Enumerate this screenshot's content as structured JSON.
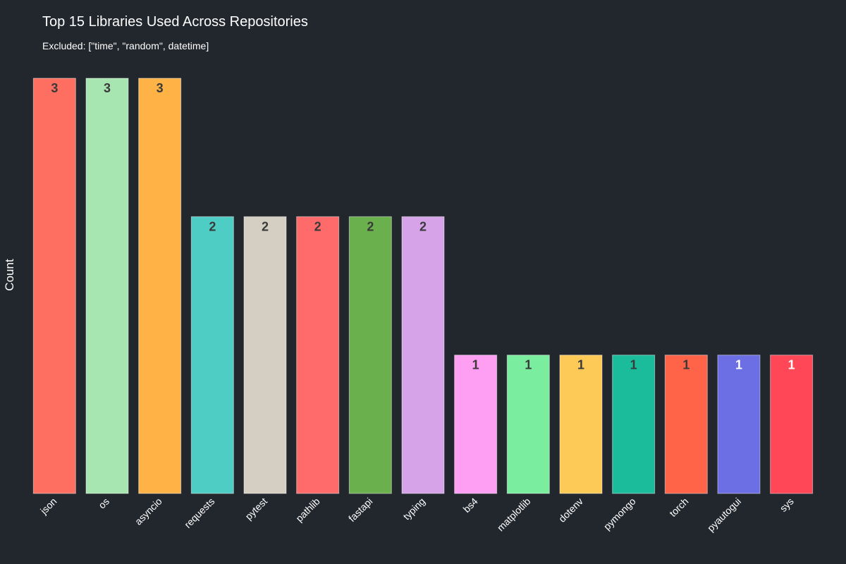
{
  "chart_data": {
    "type": "bar",
    "title": "Top 15 Libraries Used Across Repositories",
    "subtitle": "Excluded: [\"time\", \"random\", datetime]",
    "ylabel": "Count",
    "xlabel": "",
    "ylim": [
      0,
      3
    ],
    "grid": false,
    "categories": [
      "json",
      "os",
      "asyncio",
      "requests",
      "pytest",
      "pathlib",
      "fastapi",
      "typing",
      "bs4",
      "matplotlib",
      "dotenv",
      "pymongo",
      "torch",
      "pyautogui",
      "sys"
    ],
    "values": [
      3,
      3,
      3,
      2,
      2,
      2,
      2,
      2,
      1,
      1,
      1,
      1,
      1,
      1,
      1
    ],
    "colors": [
      "#ff6f61",
      "#a8e6b1",
      "#ffb347",
      "#4ecdc4",
      "#d4cfc2",
      "#ff6b6b",
      "#6ab04c",
      "#d6a2e8",
      "#ff9ff3",
      "#7bed9f",
      "#feca57",
      "#1abc9c",
      "#ff6348",
      "#6c6ee4",
      "#ff4757"
    ],
    "label_colors": [
      "#3a3a3a",
      "#3a3a3a",
      "#3a3a3a",
      "#3a3a3a",
      "#3a3a3a",
      "#3a3a3a",
      "#3a3a3a",
      "#3a3a3a",
      "#3a3a3a",
      "#3a3a3a",
      "#3a3a3a",
      "#3a3a3a",
      "#3a3a3a",
      "#ffffff",
      "#ffffff"
    ]
  }
}
